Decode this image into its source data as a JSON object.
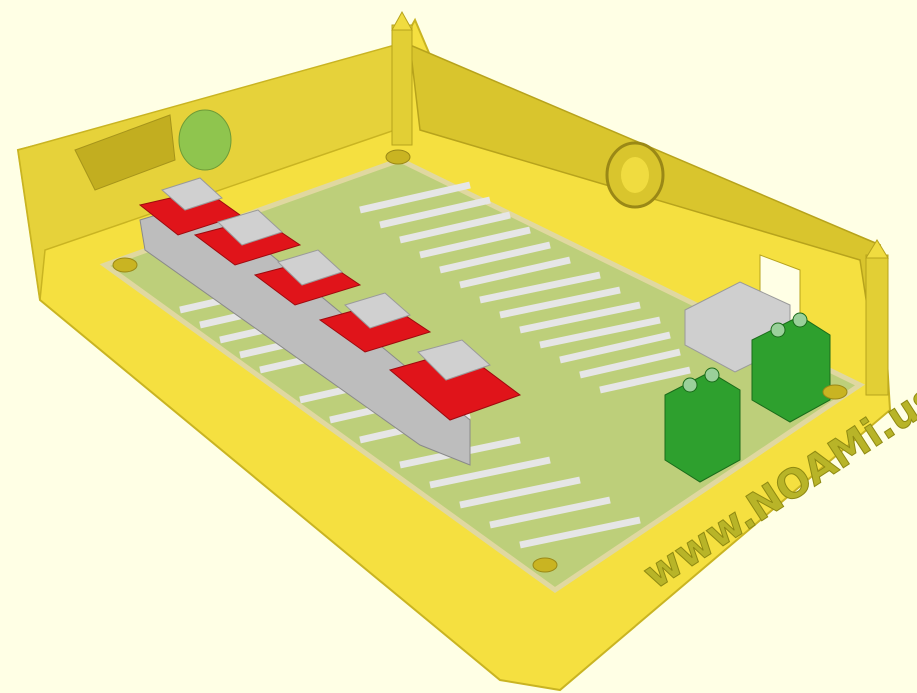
{
  "scene": {
    "engraved_text": "www.NOAMi.us",
    "colors": {
      "background": "#ffffe5",
      "enclosure": "#f5e040",
      "enclosure_shade": "#d6c128",
      "enclosure_dark": "#b7a31c",
      "pcb": "#a9c98e",
      "pcb_edge": "#e0d8a0",
      "connector_pins": "#dcdcdc",
      "driver_board": "#e0141a",
      "heatsink": "#c8c8c8",
      "terminal_block": "#2ea02e",
      "relay_block": "#cfcfcf",
      "mount_hole": "#7fb84a"
    },
    "driver_board_count": 5,
    "terminal_block_count": 2,
    "icons": [
      "enclosure-3d-model"
    ]
  }
}
